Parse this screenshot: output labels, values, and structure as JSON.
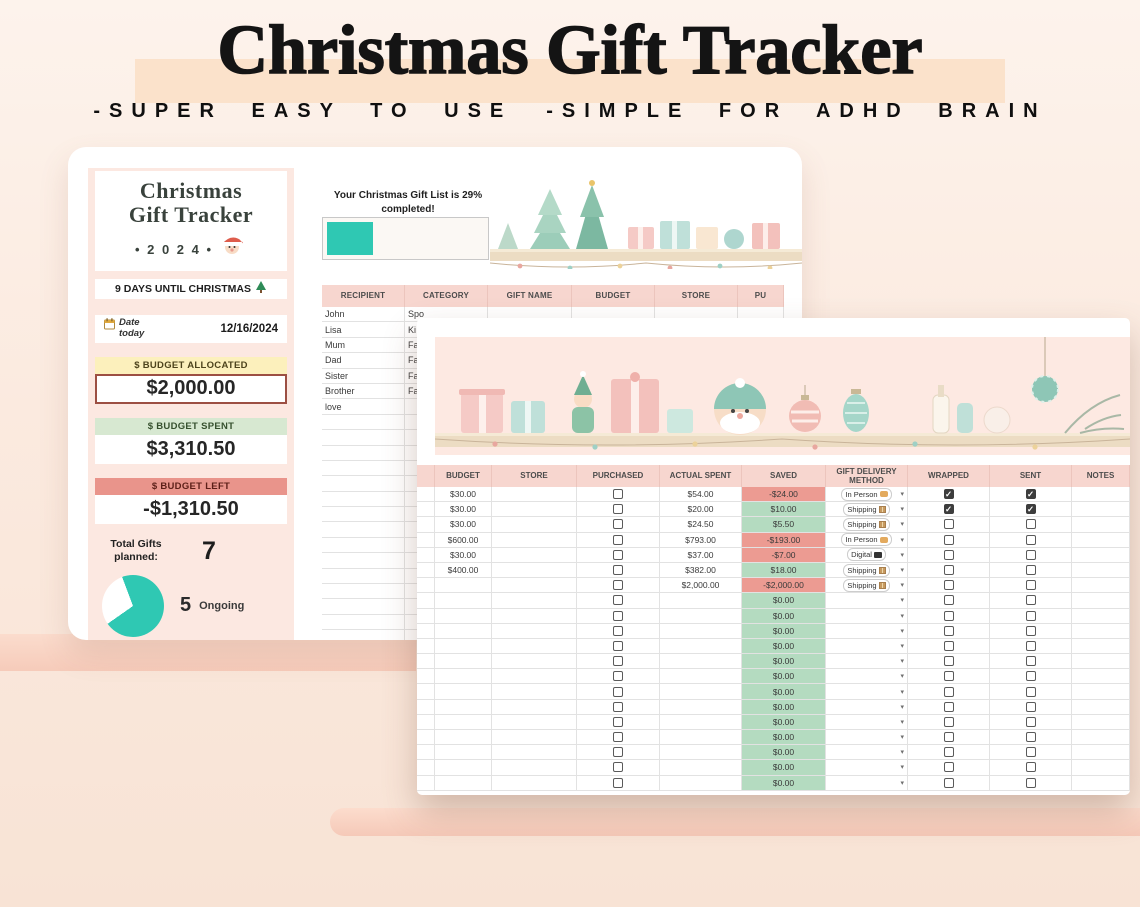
{
  "hero": {
    "title": "Christmas Gift Tracker",
    "tagline_1": "-SUPER EASY TO USE",
    "tagline_2": "-SIMPLE FOR ADHD BRAIN"
  },
  "dashboard": {
    "title_line1": "Christmas",
    "title_line2": "Gift Tracker",
    "year": "• 2 0 2 4 •",
    "countdown": "9 DAYS UNTIL CHRISTMAS",
    "date_label": "Date today",
    "date_value": "12/16/2024",
    "budget_allocated_label": "$  BUDGET ALLOCATED",
    "budget_allocated_value": "$2,000.00",
    "budget_spent_label": "$  BUDGET SPENT",
    "budget_spent_value": "$3,310.50",
    "budget_left_label": "$  BUDGET LEFT",
    "budget_left_value": "-$1,310.50",
    "total_gifts_label": "Total Gifts planned:",
    "total_gifts_value": "7",
    "pie_value": "5",
    "pie_label": "Ongoing",
    "completed_pct": 29
  },
  "list_sheet": {
    "progress_text": "Your Christmas Gift List is 29% completed!",
    "columns": [
      "RECIPIENT",
      "CATEGORY",
      "GIFT NAME",
      "BUDGET",
      "STORE",
      "PU"
    ],
    "rows": [
      {
        "recipient": "John",
        "category": "Spo"
      },
      {
        "recipient": "Lisa",
        "category": "Ki"
      },
      {
        "recipient": "Mum",
        "category": "Fa"
      },
      {
        "recipient": "Dad",
        "category": "Fa"
      },
      {
        "recipient": "Sister",
        "category": "Fa"
      },
      {
        "recipient": "Brother",
        "category": "Fa"
      },
      {
        "recipient": "love",
        "category": ""
      }
    ],
    "empty_rows": 15
  },
  "tracker_sheet": {
    "columns": [
      "",
      "BUDGET",
      "STORE",
      "PURCHASED",
      "ACTUAL SPENT",
      "SAVED",
      "GIFT DELIVERY METHOD",
      "WRAPPED",
      "SENT",
      "NOTES"
    ],
    "rows": [
      {
        "budget": "$30.00",
        "store": "",
        "purchased": false,
        "actual": "$54.00",
        "saved": "-$24.00",
        "saved_negative": true,
        "delivery": "In Person",
        "delivery_icon": "handshake-icon",
        "wrapped": true,
        "sent": true,
        "notes": ""
      },
      {
        "budget": "$30.00",
        "store": "",
        "purchased": false,
        "actual": "$20.00",
        "saved": "$10.00",
        "saved_negative": false,
        "delivery": "Shipping",
        "delivery_icon": "package-icon",
        "wrapped": true,
        "sent": true,
        "notes": ""
      },
      {
        "budget": "$30.00",
        "store": "",
        "purchased": false,
        "actual": "$24.50",
        "saved": "$5.50",
        "saved_negative": false,
        "delivery": "Shipping",
        "delivery_icon": "package-icon",
        "wrapped": false,
        "sent": false,
        "notes": ""
      },
      {
        "budget": "$600.00",
        "store": "",
        "purchased": false,
        "actual": "$793.00",
        "saved": "-$193.00",
        "saved_negative": true,
        "delivery": "In Person",
        "delivery_icon": "handshake-icon",
        "wrapped": false,
        "sent": false,
        "notes": ""
      },
      {
        "budget": "$30.00",
        "store": "",
        "purchased": false,
        "actual": "$37.00",
        "saved": "-$7.00",
        "saved_negative": true,
        "delivery": "Digital",
        "delivery_icon": "screen-icon",
        "wrapped": false,
        "sent": false,
        "notes": ""
      },
      {
        "budget": "$400.00",
        "store": "",
        "purchased": false,
        "actual": "$382.00",
        "saved": "$18.00",
        "saved_negative": false,
        "delivery": "Shipping",
        "delivery_icon": "package-icon",
        "wrapped": false,
        "sent": false,
        "notes": ""
      },
      {
        "budget": "",
        "store": "",
        "purchased": false,
        "actual": "$2,000.00",
        "saved": "-$2,000.00",
        "saved_negative": true,
        "delivery": "Shipping",
        "delivery_icon": "package-icon",
        "wrapped": false,
        "sent": false,
        "notes": ""
      }
    ],
    "empty_rows": 13,
    "empty_saved_value": "$0.00"
  },
  "colors": {
    "teal": "#2fc8b3",
    "pink_header": "#f7d6cf",
    "saved_green": "#b4dbc0",
    "saved_red": "#ec9b92",
    "budget_yellow": "#fcf0bc",
    "budget_green": "#d7e8d1",
    "budget_red": "#e9948b",
    "background_peach": "#fbe2cb"
  }
}
